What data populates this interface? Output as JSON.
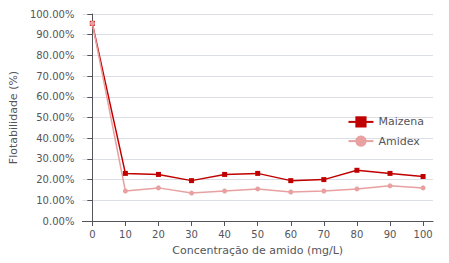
{
  "chart_data": {
    "type": "line",
    "xlabel": "Concentração de amido (mg/L)",
    "ylabel": "Flotabilidade (%)",
    "x": [
      0,
      10,
      20,
      30,
      40,
      50,
      60,
      70,
      80,
      90,
      100
    ],
    "series": [
      {
        "name": "Maizena",
        "color": "#c00000",
        "marker": "square",
        "values": [
          0.955,
          0.23,
          0.225,
          0.195,
          0.225,
          0.23,
          0.195,
          0.2,
          0.245,
          0.23,
          0.215
        ]
      },
      {
        "name": "Amidex",
        "color": "#e8a0a0",
        "marker": "circle",
        "values": [
          0.955,
          0.145,
          0.16,
          0.135,
          0.145,
          0.155,
          0.14,
          0.145,
          0.155,
          0.17,
          0.16
        ]
      }
    ],
    "xlim": [
      -3,
      103
    ],
    "xticks": [
      0,
      10,
      20,
      30,
      40,
      50,
      60,
      70,
      80,
      90,
      100
    ],
    "ylim": [
      0.0,
      1.0
    ],
    "yticks": [
      {
        "value": 0.0,
        "label": "0.00%"
      },
      {
        "value": 0.1,
        "label": "10.00%"
      },
      {
        "value": 0.2,
        "label": "20.00%"
      },
      {
        "value": 0.3,
        "label": "30.00%"
      },
      {
        "value": 0.4,
        "label": "40.00%"
      },
      {
        "value": 0.5,
        "label": "50.00%"
      },
      {
        "value": 0.6,
        "label": "60.00%"
      },
      {
        "value": 0.7,
        "label": "70.00%"
      },
      {
        "value": 0.8,
        "label": "80.00%"
      },
      {
        "value": 0.9,
        "label": "90.00%"
      },
      {
        "value": 1.0,
        "label": "100.00%"
      }
    ],
    "grid": true,
    "legend": "right"
  }
}
